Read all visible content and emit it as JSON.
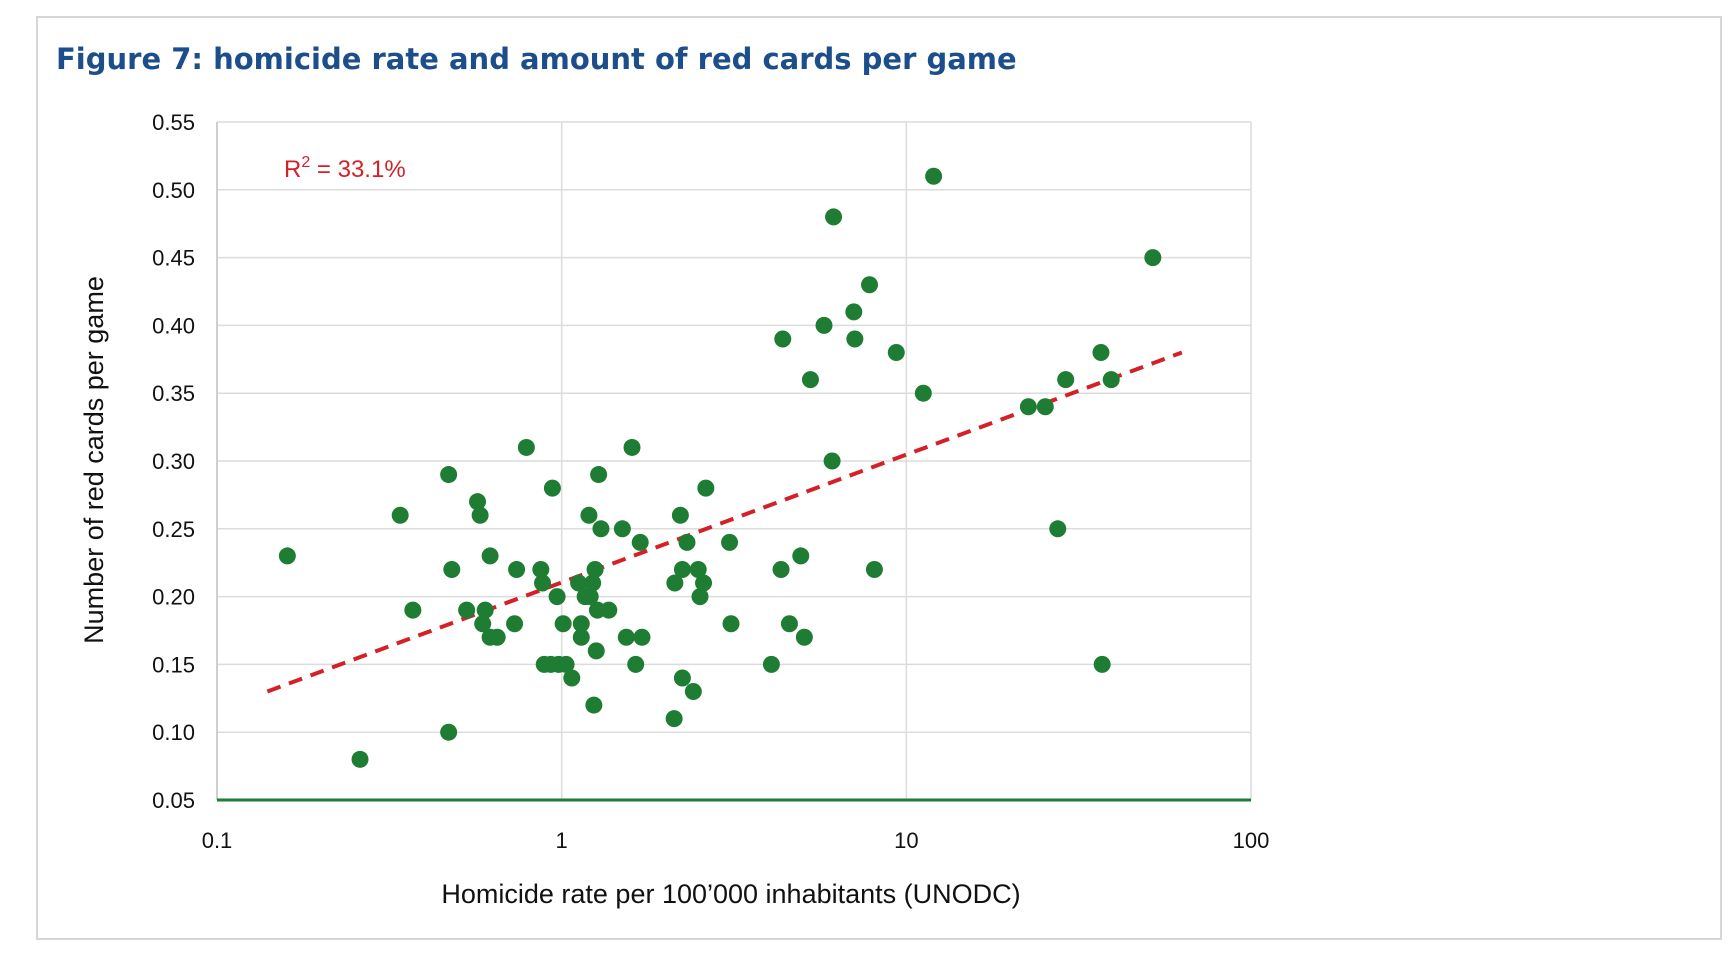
{
  "figure_title": "Figure 7: homicide rate and amount of red cards per game",
  "chart_data": {
    "type": "scatter",
    "title": "Figure 7: homicide rate and amount of red cards per game",
    "xlabel": "Homicide rate per 100’000 inhabitants (UNODC)",
    "ylabel": "Number of red cards per game",
    "x_scale": "log",
    "xlim": [
      0.1,
      100
    ],
    "ylim": [
      0.05,
      0.55
    ],
    "x_ticks": [
      0.1,
      1,
      10,
      100
    ],
    "x_tick_labels": [
      "0.1",
      "1",
      "10",
      "100"
    ],
    "y_ticks": [
      0.05,
      0.1,
      0.15,
      0.2,
      0.25,
      0.3,
      0.35,
      0.4,
      0.45,
      0.5,
      0.55
    ],
    "y_tick_labels": [
      "0.05",
      "0.10",
      "0.15",
      "0.20",
      "0.25",
      "0.30",
      "0.35",
      "0.40",
      "0.45",
      "0.50",
      "0.55"
    ],
    "grid": "vertical-and-horizontal",
    "annotation": {
      "prefix": "R",
      "superscript": "2",
      "suffix": " = 33.1%",
      "color": "#d42027"
    },
    "trendline": {
      "x_start": 0.14,
      "y_start": 0.13,
      "x_end": 63,
      "y_end": 0.38,
      "color": "#d42027",
      "style": "dashed"
    },
    "point_color": "#1e7d32",
    "axis_color": "#1e7d32",
    "points": [
      {
        "x": 0.16,
        "y": 0.23
      },
      {
        "x": 0.26,
        "y": 0.08
      },
      {
        "x": 0.34,
        "y": 0.26
      },
      {
        "x": 0.37,
        "y": 0.19
      },
      {
        "x": 0.47,
        "y": 0.29
      },
      {
        "x": 0.47,
        "y": 0.1
      },
      {
        "x": 0.48,
        "y": 0.22
      },
      {
        "x": 0.53,
        "y": 0.19
      },
      {
        "x": 0.57,
        "y": 0.27
      },
      {
        "x": 0.58,
        "y": 0.26
      },
      {
        "x": 0.59,
        "y": 0.18
      },
      {
        "x": 0.6,
        "y": 0.19
      },
      {
        "x": 0.62,
        "y": 0.17
      },
      {
        "x": 0.62,
        "y": 0.23
      },
      {
        "x": 0.65,
        "y": 0.17
      },
      {
        "x": 0.73,
        "y": 0.18
      },
      {
        "x": 0.74,
        "y": 0.22
      },
      {
        "x": 0.79,
        "y": 0.31
      },
      {
        "x": 0.87,
        "y": 0.22
      },
      {
        "x": 0.88,
        "y": 0.21
      },
      {
        "x": 0.89,
        "y": 0.15
      },
      {
        "x": 0.93,
        "y": 0.15
      },
      {
        "x": 0.94,
        "y": 0.28
      },
      {
        "x": 0.97,
        "y": 0.2
      },
      {
        "x": 0.98,
        "y": 0.15
      },
      {
        "x": 1.01,
        "y": 0.18
      },
      {
        "x": 1.03,
        "y": 0.15
      },
      {
        "x": 1.07,
        "y": 0.14
      },
      {
        "x": 1.12,
        "y": 0.21
      },
      {
        "x": 1.14,
        "y": 0.18
      },
      {
        "x": 1.14,
        "y": 0.17
      },
      {
        "x": 1.17,
        "y": 0.2
      },
      {
        "x": 1.2,
        "y": 0.26
      },
      {
        "x": 1.21,
        "y": 0.2
      },
      {
        "x": 1.23,
        "y": 0.21
      },
      {
        "x": 1.24,
        "y": 0.12
      },
      {
        "x": 1.25,
        "y": 0.22
      },
      {
        "x": 1.26,
        "y": 0.16
      },
      {
        "x": 1.27,
        "y": 0.19
      },
      {
        "x": 1.28,
        "y": 0.29
      },
      {
        "x": 1.3,
        "y": 0.25
      },
      {
        "x": 1.37,
        "y": 0.19
      },
      {
        "x": 1.5,
        "y": 0.25
      },
      {
        "x": 1.54,
        "y": 0.17
      },
      {
        "x": 1.6,
        "y": 0.31
      },
      {
        "x": 1.64,
        "y": 0.15
      },
      {
        "x": 1.69,
        "y": 0.24
      },
      {
        "x": 1.71,
        "y": 0.17
      },
      {
        "x": 2.12,
        "y": 0.11
      },
      {
        "x": 2.13,
        "y": 0.21
      },
      {
        "x": 2.21,
        "y": 0.26
      },
      {
        "x": 2.24,
        "y": 0.14
      },
      {
        "x": 2.24,
        "y": 0.22
      },
      {
        "x": 2.31,
        "y": 0.24
      },
      {
        "x": 2.41,
        "y": 0.13
      },
      {
        "x": 2.49,
        "y": 0.22
      },
      {
        "x": 2.52,
        "y": 0.2
      },
      {
        "x": 2.58,
        "y": 0.21
      },
      {
        "x": 2.62,
        "y": 0.28
      },
      {
        "x": 3.07,
        "y": 0.24
      },
      {
        "x": 3.1,
        "y": 0.18
      },
      {
        "x": 4.06,
        "y": 0.15
      },
      {
        "x": 4.33,
        "y": 0.22
      },
      {
        "x": 4.38,
        "y": 0.39
      },
      {
        "x": 4.58,
        "y": 0.18
      },
      {
        "x": 4.94,
        "y": 0.23
      },
      {
        "x": 5.06,
        "y": 0.17
      },
      {
        "x": 5.27,
        "y": 0.36
      },
      {
        "x": 5.77,
        "y": 0.4
      },
      {
        "x": 6.09,
        "y": 0.3
      },
      {
        "x": 6.15,
        "y": 0.48
      },
      {
        "x": 7.04,
        "y": 0.41
      },
      {
        "x": 7.09,
        "y": 0.39
      },
      {
        "x": 7.82,
        "y": 0.43
      },
      {
        "x": 8.08,
        "y": 0.22
      },
      {
        "x": 9.35,
        "y": 0.38
      },
      {
        "x": 11.2,
        "y": 0.35
      },
      {
        "x": 12.0,
        "y": 0.51
      },
      {
        "x": 22.6,
        "y": 0.34
      },
      {
        "x": 25.3,
        "y": 0.34
      },
      {
        "x": 27.5,
        "y": 0.25
      },
      {
        "x": 29.0,
        "y": 0.36
      },
      {
        "x": 36.7,
        "y": 0.38
      },
      {
        "x": 37.0,
        "y": 0.15
      },
      {
        "x": 39.3,
        "y": 0.36
      },
      {
        "x": 51.9,
        "y": 0.45
      }
    ]
  }
}
